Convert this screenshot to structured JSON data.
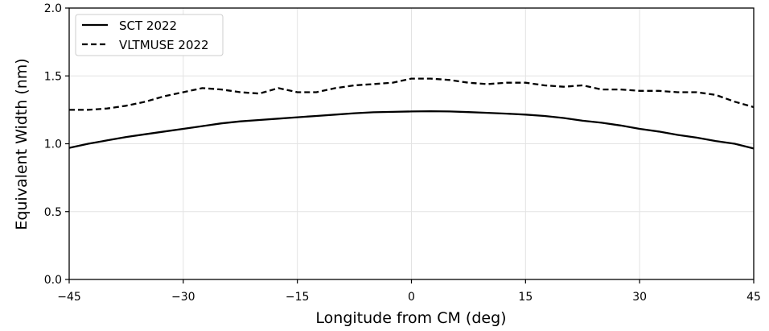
{
  "chart_data": {
    "type": "line",
    "title": "",
    "xlabel": "Longitude from CM (deg)",
    "ylabel": "Equivalent Width (nm)",
    "xlim": [
      -45,
      45
    ],
    "ylim": [
      0.0,
      2.0
    ],
    "xticks": [
      -45,
      -30,
      -15,
      0,
      15,
      30,
      45
    ],
    "xtick_labels": [
      "−45",
      "−30",
      "−15",
      "0",
      "15",
      "30",
      "45"
    ],
    "yticks": [
      0.0,
      0.5,
      1.0,
      1.5,
      2.0
    ],
    "ytick_labels": [
      "0.0",
      "0.5",
      "1.0",
      "1.5",
      "2.0"
    ],
    "grid": true,
    "legend_position": "upper-left",
    "x": [
      -45,
      -42.5,
      -40,
      -37.5,
      -35,
      -32.5,
      -30,
      -27.5,
      -25,
      -22.5,
      -20,
      -17.5,
      -15,
      -12.5,
      -10,
      -7.5,
      -5,
      -2.5,
      0,
      2.5,
      5,
      7.5,
      10,
      12.5,
      15,
      17.5,
      20,
      22.5,
      25,
      27.5,
      30,
      32.5,
      35,
      37.5,
      40,
      42.5,
      45
    ],
    "series": [
      {
        "name": "SCT 2022",
        "style": "solid",
        "color": "#000000",
        "values": [
          0.97,
          1.0,
          1.025,
          1.05,
          1.07,
          1.09,
          1.11,
          1.13,
          1.15,
          1.165,
          1.175,
          1.185,
          1.195,
          1.205,
          1.215,
          1.225,
          1.232,
          1.235,
          1.238,
          1.24,
          1.238,
          1.233,
          1.228,
          1.222,
          1.215,
          1.205,
          1.19,
          1.17,
          1.155,
          1.135,
          1.11,
          1.09,
          1.065,
          1.045,
          1.02,
          1.0,
          0.965
        ]
      },
      {
        "name": "VLTMUSE 2022",
        "style": "dashed",
        "color": "#000000",
        "values": [
          1.25,
          1.25,
          1.26,
          1.28,
          1.31,
          1.35,
          1.38,
          1.41,
          1.4,
          1.38,
          1.37,
          1.41,
          1.38,
          1.38,
          1.41,
          1.43,
          1.44,
          1.45,
          1.48,
          1.48,
          1.47,
          1.45,
          1.44,
          1.45,
          1.45,
          1.43,
          1.42,
          1.43,
          1.4,
          1.4,
          1.39,
          1.39,
          1.38,
          1.38,
          1.36,
          1.31,
          1.27
        ]
      }
    ]
  }
}
